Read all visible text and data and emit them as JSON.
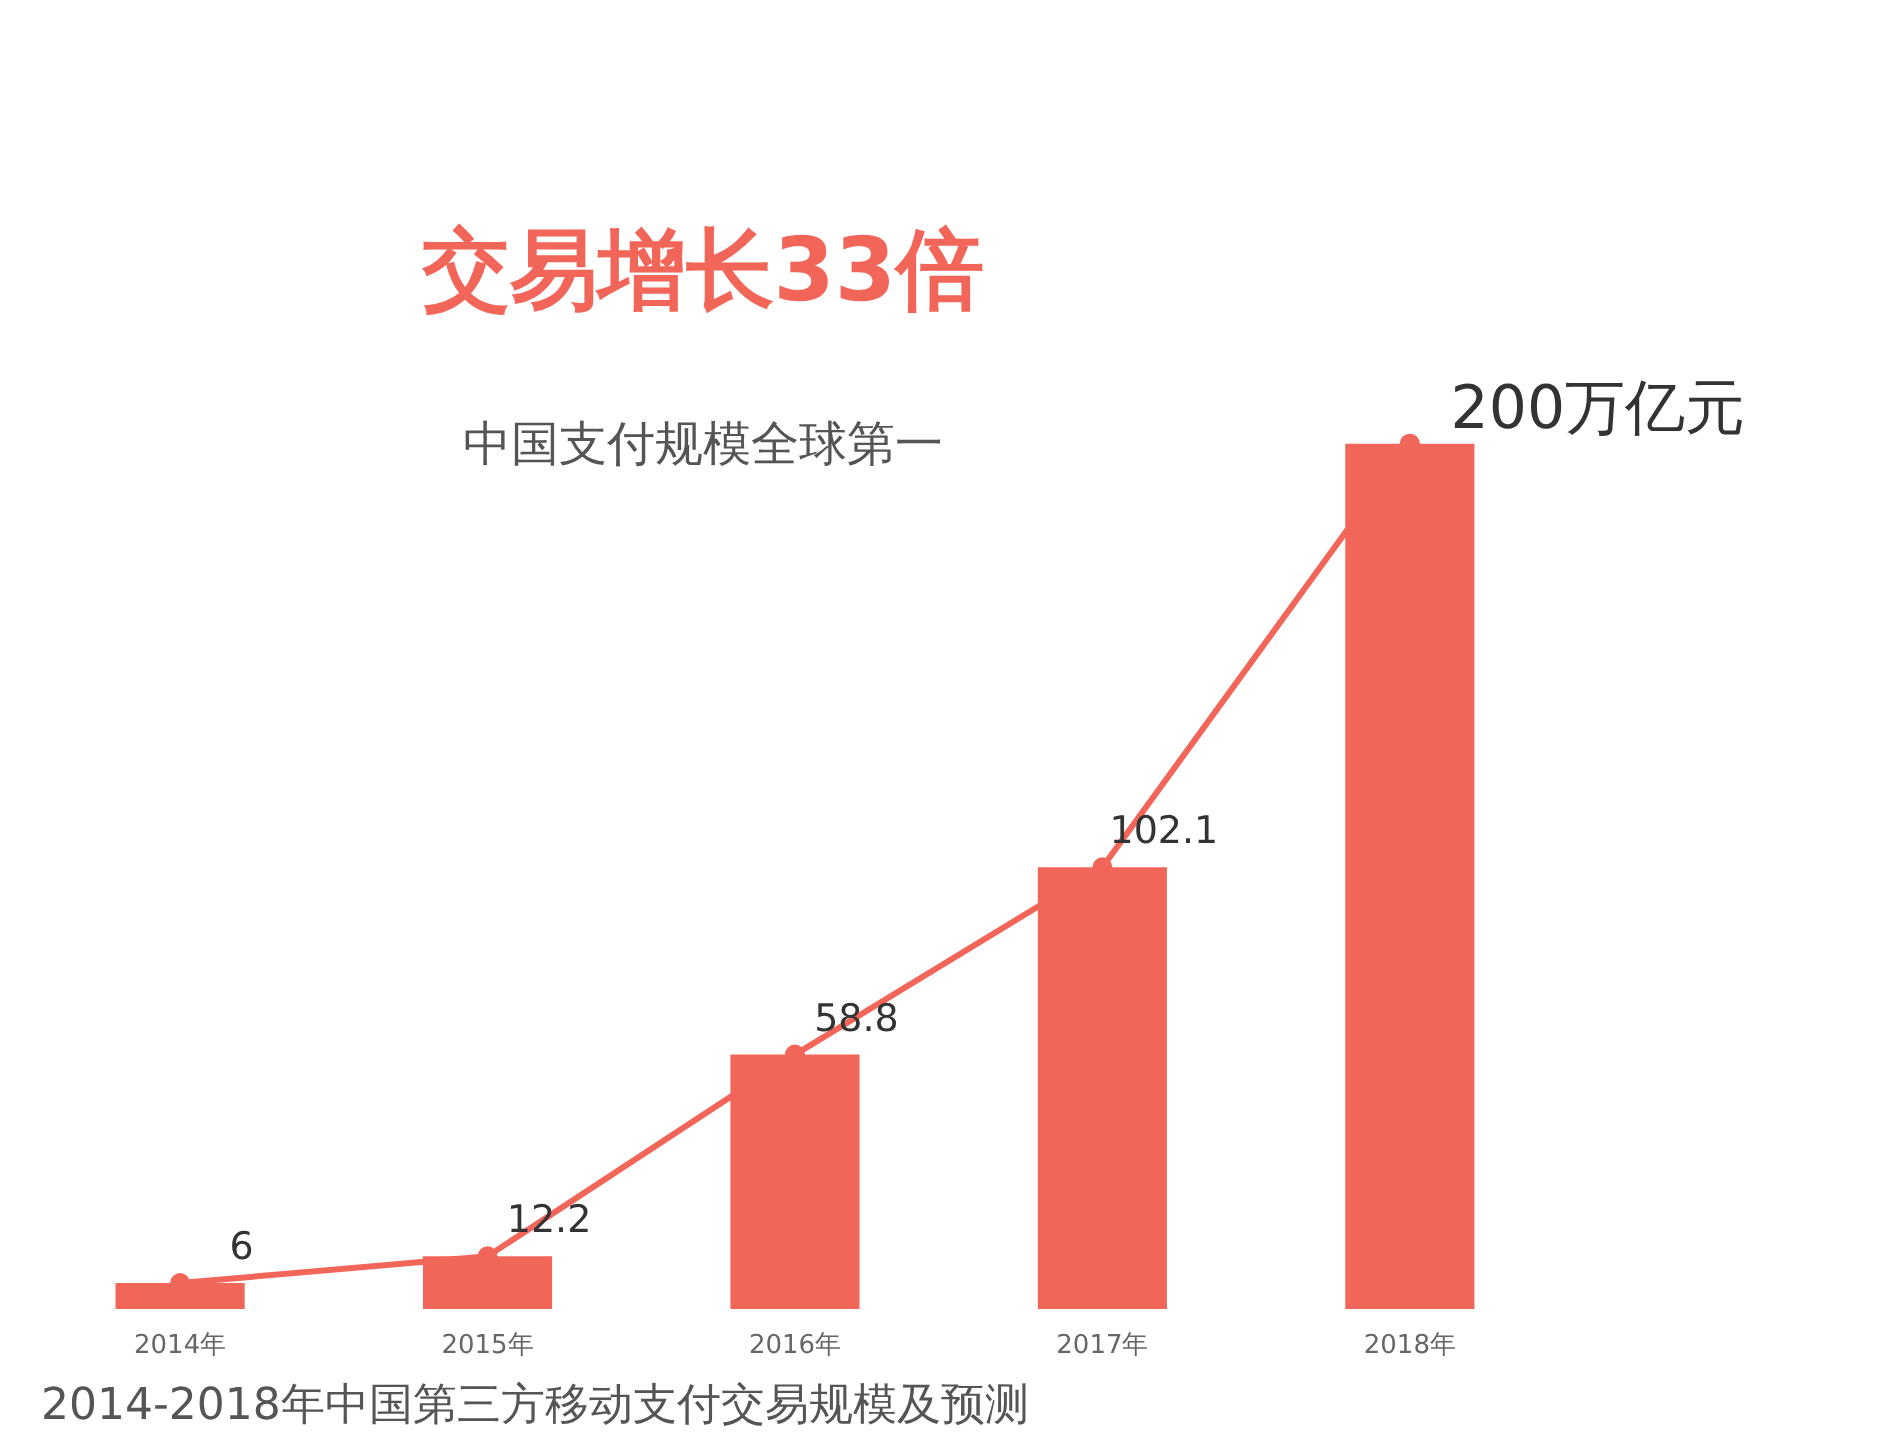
{
  "chart_data": {
    "type": "bar",
    "title": "2014-2018年中国第三方移动支付交易规模及预测",
    "categories": [
      "2014年",
      "2015年",
      "2016年",
      "2017年",
      "2018年"
    ],
    "series": [
      {
        "color": "#f2665a",
        "values": [
          6,
          12.2,
          58.8,
          102.1,
          200
        ]
      },
      {
        "type": "line",
        "color": "#f2665a",
        "values": [
          6,
          12.2,
          58.8,
          102.1,
          200
        ],
        "marker": "circle",
        "value_labels": [
          "6",
          "12.2",
          "58.8",
          "102.1",
          "200万亿元"
        ]
      }
    ],
    "annotations": [
      "交易增长33倍",
      "中国支付规模全球第一"
    ],
    "grid": false
  }
}
